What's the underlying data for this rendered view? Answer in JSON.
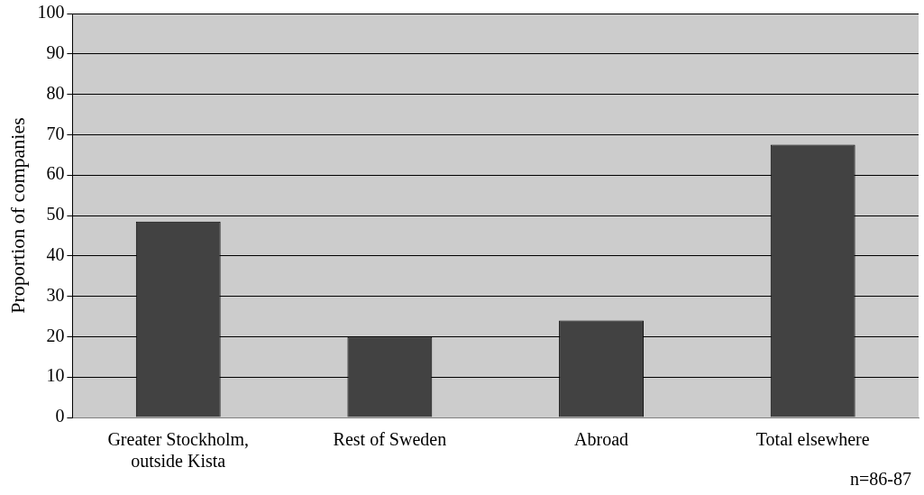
{
  "chart_data": {
    "type": "bar",
    "ylabel": "Proportion of companies",
    "categories": [
      "Greater Stockholm, outside Kista",
      "Rest of Sweden",
      "Abroad",
      "Total elsewhere"
    ],
    "values": [
      48.5,
      20,
      24,
      67.5
    ],
    "color": "#424242",
    "ylim": [
      0,
      100
    ],
    "yticks": [
      0,
      10,
      20,
      30,
      40,
      50,
      60,
      70,
      80,
      90,
      100
    ],
    "grid": "y",
    "legend": false,
    "annotations": [
      "n=86-87"
    ]
  }
}
